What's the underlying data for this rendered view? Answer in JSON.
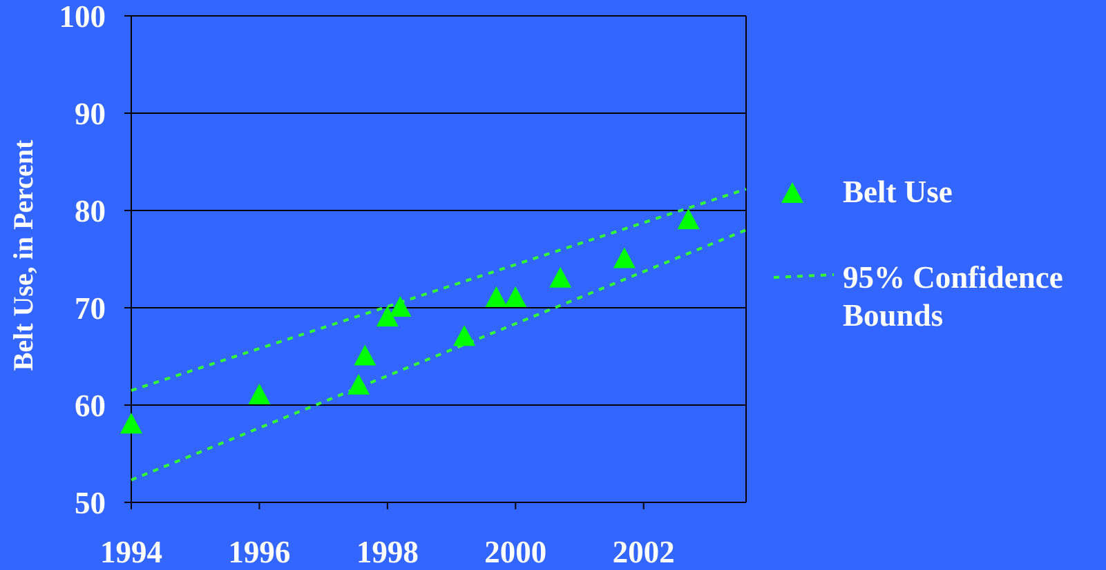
{
  "chart_data": {
    "type": "scatter",
    "title": "",
    "ylabel": "Belt Use, in Percent",
    "xlabel": "",
    "xlim": [
      1994,
      2003.6
    ],
    "ylim": [
      50,
      100
    ],
    "x_ticks": [
      1994,
      1996,
      1998,
      2000,
      2002
    ],
    "y_ticks": [
      50,
      60,
      70,
      80,
      90,
      100
    ],
    "grid": "horizontal",
    "legend_position": "right",
    "colors": {
      "background": "#3366FF",
      "marker": "#00FF00",
      "bound_line": "#33FF33",
      "text": "#FFFFFF",
      "axis": "#000000"
    },
    "series": [
      {
        "name": "Belt Use",
        "kind": "points",
        "marker": "triangle",
        "x": [
          1994.0,
          1996.0,
          1997.55,
          1997.65,
          1998.0,
          1998.2,
          1999.2,
          1999.7,
          2000.0,
          2000.7,
          2001.7,
          2002.7
        ],
        "y": [
          58,
          61,
          62,
          65,
          69,
          70,
          67,
          71,
          71,
          73,
          75,
          79
        ]
      },
      {
        "name": "95% Confidence Bounds",
        "kind": "dotted-line",
        "lines": [
          {
            "x": [
              1994,
              2003.6
            ],
            "y": [
              61.5,
              82.2
            ]
          },
          {
            "x": [
              1994,
              2003.6
            ],
            "y": [
              52.3,
              78.0
            ]
          }
        ]
      }
    ]
  },
  "legend": {
    "belt_use_label": "Belt Use",
    "bounds_label_line1": "95% Confidence",
    "bounds_label_line2": "Bounds"
  }
}
